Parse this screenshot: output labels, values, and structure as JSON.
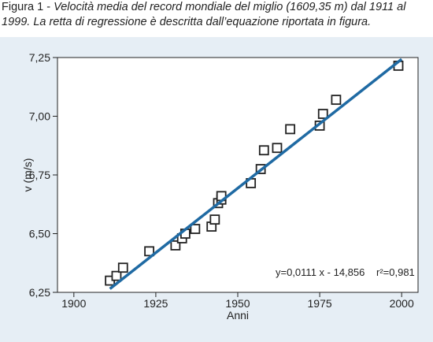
{
  "caption": {
    "label": "Figura 1",
    "text": "Velocità media del record mondiale del miglio (1609,35 m) dal 1911 al 1999. La retta di regressione è descritta dall’equazione riportata in figura."
  },
  "chart_data": {
    "type": "scatter",
    "xlabel": "Anni",
    "ylabel": "v (m/s)",
    "xlim": [
      1895,
      2005
    ],
    "ylim": [
      6.25,
      7.25
    ],
    "x_ticks": [
      "1900",
      "1925",
      "1950",
      "1975",
      "2000"
    ],
    "y_ticks": [
      "6,25",
      "6,50",
      "6,75",
      "7,00",
      "7,25"
    ],
    "grid": false,
    "x": [
      1911,
      1913,
      1915,
      1923,
      1931,
      1933,
      1934,
      1937,
      1942,
      1943,
      1944,
      1945,
      1945,
      1954,
      1957,
      1958,
      1962,
      1966,
      1975,
      1976,
      1980,
      1999
    ],
    "y": [
      6.3,
      6.32,
      6.355,
      6.425,
      6.45,
      6.48,
      6.5,
      6.52,
      6.53,
      6.56,
      6.63,
      6.645,
      6.66,
      6.715,
      6.775,
      6.855,
      6.865,
      6.945,
      6.96,
      7.01,
      7.07,
      7.215
    ],
    "regression": {
      "x": [
        1911,
        2000
      ],
      "y": [
        6.265,
        7.243
      ],
      "equation": "y=0,0111 x - 14,856",
      "r2": "r²=0,981"
    },
    "colors": {
      "line": "#1f6aa3",
      "marker": "#222222",
      "background": "#e6eef5",
      "plot": "#ffffff"
    }
  }
}
